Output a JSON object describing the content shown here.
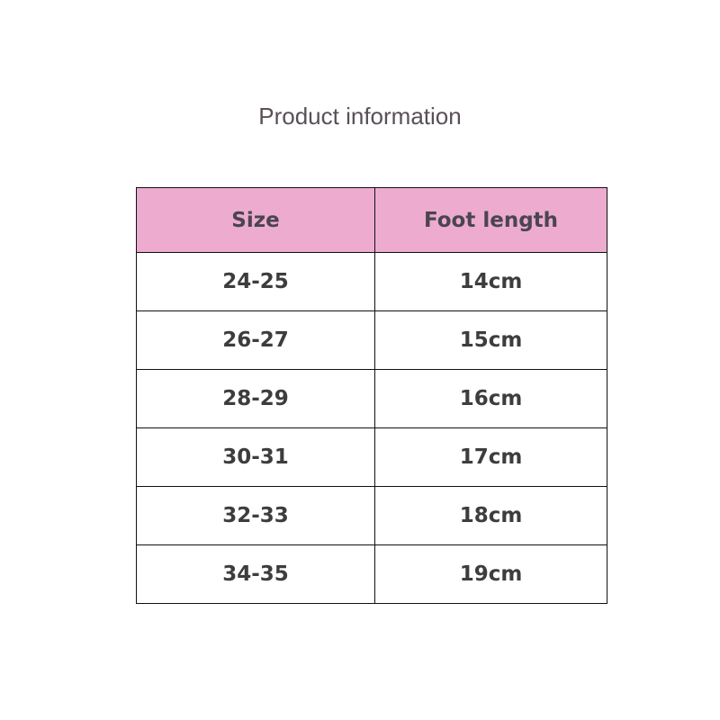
{
  "title": "Product information",
  "colors": {
    "header_bg": "#edabd0",
    "border": "#111111"
  },
  "table": {
    "headers": [
      "Size",
      "Foot length"
    ],
    "rows": [
      [
        "24-25",
        "14cm"
      ],
      [
        "26-27",
        "15cm"
      ],
      [
        "28-29",
        "16cm"
      ],
      [
        "30-31",
        "17cm"
      ],
      [
        "32-33",
        "18cm"
      ],
      [
        "34-35",
        "19cm"
      ]
    ]
  }
}
